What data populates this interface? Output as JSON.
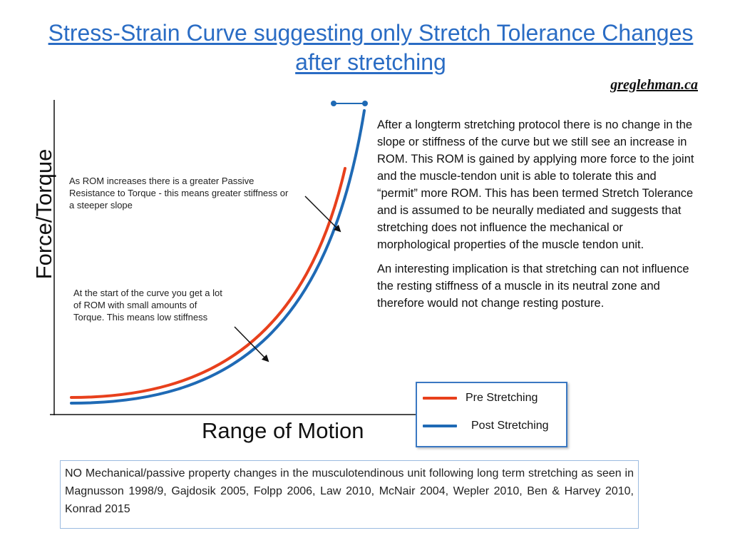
{
  "title": "Stress-Strain Curve suggesting only Stretch Tolerance Changes after stretching",
  "site": "greglehman.ca",
  "y_axis_label": "Force/Torque",
  "x_axis_label": "Range of Motion",
  "annotations": {
    "upper": "As ROM increases there is a greater Passive Resistance to Torque - this means greater stiffness or a steeper slope",
    "lower": "At the start of the curve you get a lot of ROM with small amounts of Torque.  This means low stiffness"
  },
  "explanation": [
    "After a longterm stretching protocol there is no change in the slope or stiffness of the curve but we still see an increase in ROM.  This ROM is gained by applying more force to the joint and the muscle-tendon unit is able to tolerate this and “permit” more ROM.  This has been termed Stretch Tolerance and is assumed to be neurally mediated and suggests that stretching does not influence the mechanical or morphological properties of the muscle tendon unit.",
    "An interesting implication is that stretching can not influence the resting stiffness of a muscle in its neutral zone and therefore would not change resting posture."
  ],
  "legend": [
    {
      "label": "Pre Stretching",
      "color": "#e8401c"
    },
    {
      "label": "Post Stretching",
      "color": "#1f6ab5"
    }
  ],
  "references": "NO Mechanical/passive property changes in the musculotendinous unit following long term stretching as seen in Magnusson 1998/9, Gajdosik 2005, Folpp 2006, Law 2010, McNair 2004, Wepler 2010, Ben & Harvey 2010,  Konrad 2015",
  "colors": {
    "title": "#2a6cc4",
    "pre_curve": "#e8401c",
    "post_curve": "#1f6ab5",
    "legend_border": "#3a78c2",
    "references_border": "#9bbbe0"
  }
}
